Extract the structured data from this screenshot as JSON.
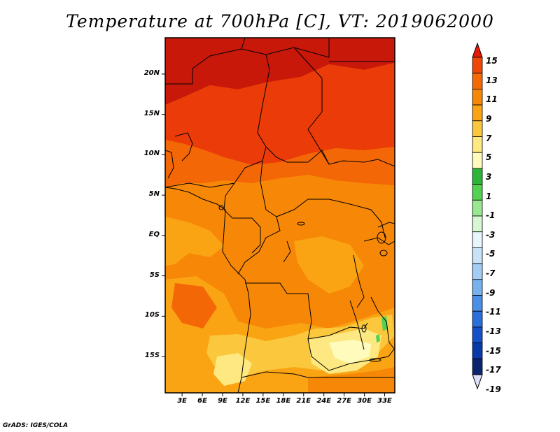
{
  "title": "Temperature at 700hPa [C], VT: 2019062000",
  "credit": "GrADS: IGES/COLA",
  "map": {
    "lat_labels": [
      {
        "text": "20N",
        "lat": 20
      },
      {
        "text": "15N",
        "lat": 15
      },
      {
        "text": "10N",
        "lat": 10
      },
      {
        "text": "5N",
        "lat": 5
      },
      {
        "text": "EQ",
        "lat": 0
      },
      {
        "text": "5S",
        "lat": -5
      },
      {
        "text": "10S",
        "lat": -10
      },
      {
        "text": "15S",
        "lat": -15
      }
    ],
    "lon_labels": [
      {
        "text": "3E",
        "lon": 3
      },
      {
        "text": "6E",
        "lon": 6
      },
      {
        "text": "9E",
        "lon": 9
      },
      {
        "text": "12E",
        "lon": 12
      },
      {
        "text": "15E",
        "lon": 15
      },
      {
        "text": "18E",
        "lon": 18
      },
      {
        "text": "21E",
        "lon": 21
      },
      {
        "text": "24E",
        "lon": 24
      },
      {
        "text": "27E",
        "lon": 27
      },
      {
        "text": "30E",
        "lon": 30
      },
      {
        "text": "33E",
        "lon": 33
      }
    ]
  },
  "colorbar": {
    "labels": [
      "15",
      "13",
      "11",
      "9",
      "7",
      "5",
      "3",
      "1",
      "-1",
      "-3",
      "-5",
      "-7",
      "-9",
      "-11",
      "-13",
      "-15",
      "-17",
      "-19"
    ],
    "colors": [
      "#e41a08",
      "#ef4806",
      "#f36a07",
      "#f78707",
      "#faa414",
      "#fbc73c",
      "#fde882",
      "#fefbbd",
      "#2eb43a",
      "#55d152",
      "#99e88f",
      "#d7f7d2",
      "#e8f5fb",
      "#c8e3f8",
      "#a3cdf4",
      "#78b2ee",
      "#4a90e6",
      "#2a6fdc",
      "#1650c8",
      "#0a3aa8",
      "#0a2470",
      "#dfe0f7"
    ]
  }
}
